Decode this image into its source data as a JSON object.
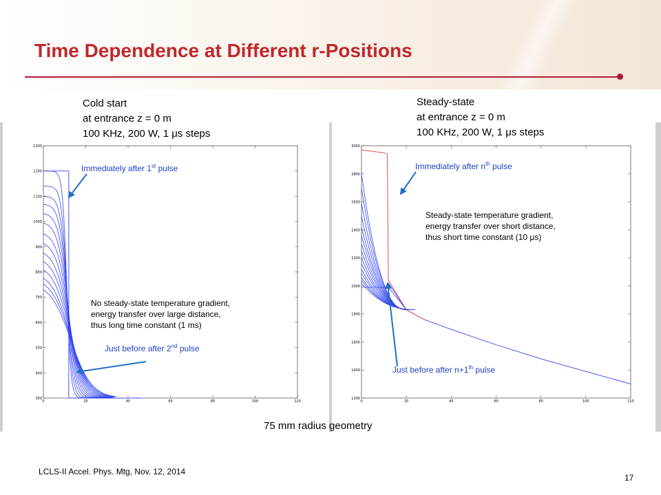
{
  "slide": {
    "title": "Time Dependence at Different r-Positions",
    "footer": "LCLS-II Accel. Phys. Mtg, Nov. 12, 2014",
    "page_number": "17",
    "geometry_caption": "75 mm radius geometry",
    "accent_color": "#c0282d"
  },
  "left_panel": {
    "caption": [
      "Cold start",
      "at entrance z = 0 m",
      "100 KHz, 200 W, 1 μs steps"
    ],
    "annotation_top": {
      "text": "Immediately after 1",
      "sup": "st",
      "tail": " pulse"
    },
    "annotation_bottom": {
      "text": "Just before after 2",
      "sup": "nd",
      "tail": " pulse"
    },
    "note": [
      "No steady-state temperature gradient,",
      "energy transfer over large distance,",
      "thus long time constant (1 ms)"
    ]
  },
  "right_panel": {
    "caption": [
      "Steady-state",
      "at entrance z = 0 m",
      "100 KHz, 200 W, 1 μs steps"
    ],
    "annotation_top": {
      "text": "Immediately after n",
      "sup": "th",
      "tail": " pulse"
    },
    "annotation_bottom": {
      "text": "Just before after n+1",
      "sup": "th",
      "tail": " pulse"
    },
    "note": [
      "Steady-state temperature gradient,",
      "energy transfer over short distance,",
      "thus short time constant (10 μs)"
    ]
  },
  "chart_data": [
    {
      "type": "line",
      "title": "",
      "xlabel": "",
      "ylabel": "",
      "xlim": [
        0,
        120
      ],
      "ylim": [
        300,
        1300
      ],
      "xticks": [
        0,
        20,
        40,
        60,
        80,
        100,
        120
      ],
      "yticks": [
        300,
        400,
        500,
        600,
        700,
        800,
        900,
        1000,
        1100,
        1200,
        1300
      ],
      "grid": false,
      "series_color": "#3344ee",
      "curves": {
        "step_edge_x": 12,
        "plateau_y": 1200,
        "baseline_y": 300,
        "initial_step_end_x": 46,
        "decayed_x0_values": [
          1200,
          1140,
          1100,
          1070,
          1035,
          1000,
          960,
          925,
          890,
          860,
          830,
          800,
          780,
          760
        ],
        "decayed_zero_x": 28
      }
    },
    {
      "type": "line",
      "title": "",
      "xlabel": "",
      "ylabel": "",
      "xlim": [
        0,
        120
      ],
      "ylim": [
        1200,
        3000
      ],
      "xticks": [
        0,
        20,
        40,
        60,
        80,
        100,
        120
      ],
      "yticks": [
        1200,
        1400,
        1600,
        1800,
        2000,
        2200,
        2400,
        2600,
        2800,
        3000
      ],
      "grid": false,
      "series_color": "#3344ee",
      "pulse_color": "#e05050",
      "curves": {
        "tail": [
          [
            12,
            2020
          ],
          [
            20,
            1830
          ],
          [
            28,
            1760
          ],
          [
            40,
            1690
          ],
          [
            60,
            1580
          ],
          [
            80,
            1480
          ],
          [
            100,
            1390
          ],
          [
            120,
            1300
          ]
        ],
        "pulse": [
          [
            0,
            2970
          ],
          [
            5,
            2960
          ],
          [
            10,
            2950
          ],
          [
            11.5,
            2940
          ],
          [
            12,
            2040
          ]
        ],
        "pulse_just_before": [
          [
            0,
            1990
          ],
          [
            6,
            1990
          ],
          [
            12,
            1990
          ],
          [
            20,
            1830
          ]
        ],
        "blue_x0_values": [
          2800,
          2700,
          2590,
          2500,
          2420,
          2360,
          2300,
          2250,
          2200,
          2160,
          2120,
          2090,
          2060,
          2040,
          2020
        ]
      }
    }
  ]
}
